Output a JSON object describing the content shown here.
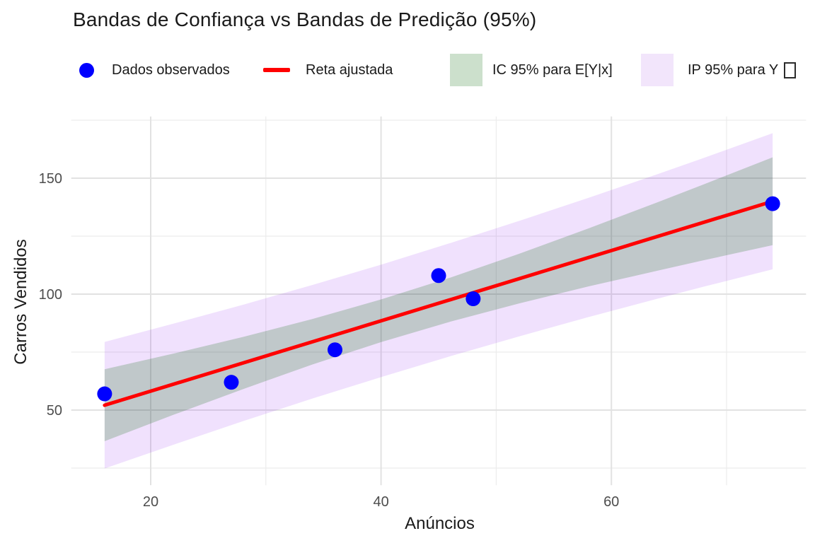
{
  "title": "Bandas de Confiança vs Bandas de Predição (95%)",
  "legend": {
    "items": [
      {
        "label": "Dados observados",
        "key": "point"
      },
      {
        "label": "Reta ajustada",
        "key": "line"
      },
      {
        "label": "IC 95% para E[Y|x]",
        "key": "ribbon-ci"
      },
      {
        "label": "IP 95% para Y",
        "key": "ribbon-pi",
        "trailing_missing_glyph": true
      }
    ]
  },
  "axes": {
    "x": {
      "title": "Anúncios",
      "ticks": [
        20,
        40,
        60
      ],
      "minor_ticks": [
        30,
        50,
        70
      ],
      "range": [
        13.1,
        76.9
      ]
    },
    "y": {
      "title": "Carros Vendidos",
      "ticks": [
        50,
        100,
        150
      ],
      "minor_ticks": [
        25,
        75,
        125,
        175
      ],
      "range": [
        17.6,
        176.6
      ]
    }
  },
  "chart_data": {
    "type": "scatter",
    "title": "Bandas de Confiança vs Bandas de Predição (95%)",
    "xlabel": "Anúncios",
    "ylabel": "Carros Vendidos",
    "grid": true,
    "legend_position": "top",
    "points": [
      [
        16,
        57
      ],
      [
        27,
        62
      ],
      [
        36,
        76
      ],
      [
        45,
        108
      ],
      [
        48,
        98
      ],
      [
        74,
        139
      ]
    ],
    "fit_line": {
      "intercept": 27.84,
      "slope": 1.516,
      "x_start": 16,
      "x_end": 74
    },
    "bands": {
      "x": [
        16,
        22,
        28,
        34,
        40,
        46,
        52,
        58,
        64,
        68,
        74
      ],
      "ci_lower": [
        36.6,
        48.0,
        59.0,
        69.6,
        79.3,
        88.1,
        96.0,
        103.3,
        110.1,
        114.6,
        121.1
      ],
      "ci_upper": [
        67.6,
        74.4,
        81.5,
        89.2,
        97.7,
        107.1,
        117.4,
        128.3,
        139.6,
        147.3,
        159.0
      ],
      "pi_lower": [
        24.8,
        35.1,
        45.2,
        54.9,
        64.2,
        73.2,
        81.8,
        90.1,
        98.0,
        103.2,
        110.7
      ],
      "pi_upper": [
        79.4,
        87.3,
        95.4,
        103.9,
        112.7,
        122.0,
        131.6,
        141.5,
        151.7,
        158.7,
        169.4
      ]
    },
    "xlim": [
      13.1,
      76.9
    ],
    "ylim": [
      17.6,
      176.6
    ]
  },
  "colors": {
    "point": "#0000FF",
    "line": "#FF0000",
    "ci_fill": "rgba(0,100,0,0.20)",
    "pi_fill": "rgba(140,20,240,0.13)",
    "ci_legend_swatch": "#cce0cc",
    "pi_legend_swatch": "#f2e5fb",
    "grid_major": "#e2e2e2",
    "grid_minor": "#ececec",
    "tick_label": "#4d4d4d"
  }
}
